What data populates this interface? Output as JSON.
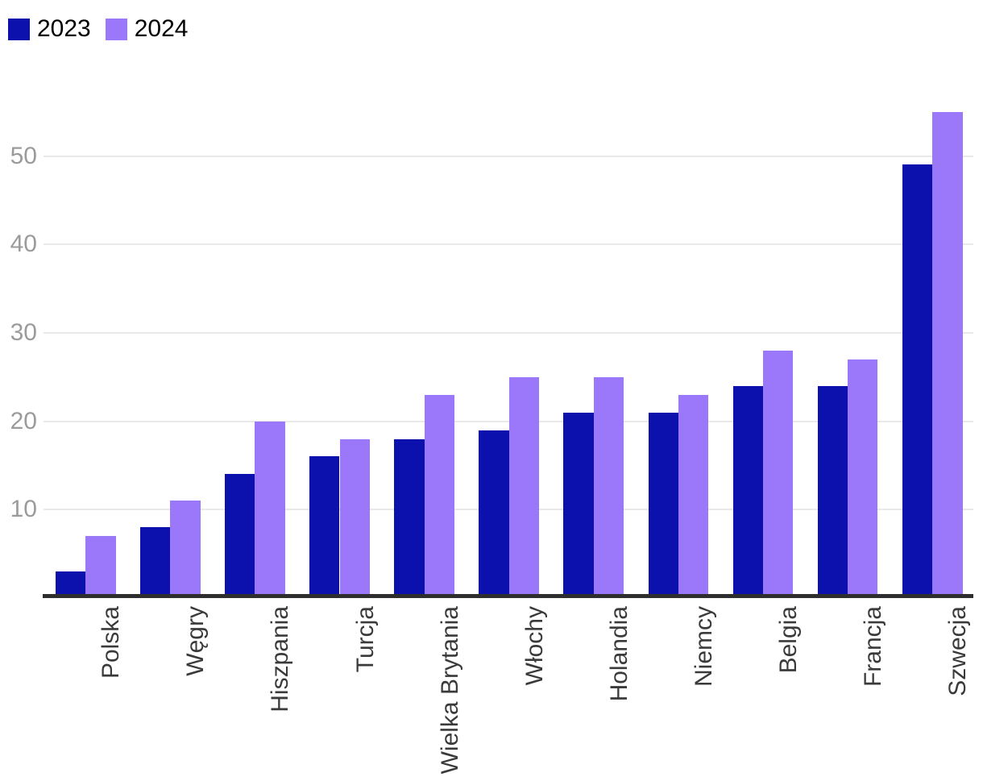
{
  "legend": {
    "items": [
      {
        "label": "2023",
        "color": "#0c10ad"
      },
      {
        "label": "2024",
        "color": "#9b77fa"
      }
    ]
  },
  "colors": {
    "series_2023": "#0c10ad",
    "series_2024": "#9b77fa",
    "gridline": "#e9e9e9",
    "axis_line": "#2e2e2e",
    "ytick_text": "#9b9b9b",
    "xlabel_text": "#3a3a3a",
    "legend_text": "#000000",
    "background": "#ffffff"
  },
  "chart_data": {
    "type": "bar",
    "title": "",
    "xlabel": "",
    "ylabel": "",
    "categories": [
      "Polska",
      "Węgry",
      "Hiszpania",
      "Turcja",
      "Wielka Brytania",
      "Włochy",
      "Holandia",
      "Niemcy",
      "Belgia",
      "Francja",
      "Szwecja"
    ],
    "series": [
      {
        "name": "2023",
        "color": "#0c10ad",
        "values": [
          3,
          8,
          14,
          16,
          18,
          19,
          21,
          21,
          24,
          24,
          49
        ]
      },
      {
        "name": "2024",
        "color": "#9b77fa",
        "values": [
          7,
          11,
          20,
          18,
          23,
          25,
          25,
          23,
          28,
          27,
          55
        ]
      }
    ],
    "yticks": [
      10,
      20,
      30,
      40,
      50
    ],
    "ylim": [
      0,
      58
    ],
    "grid": "horizontal",
    "legend_position": "top-left",
    "xlabel_rotation_deg": 90
  }
}
